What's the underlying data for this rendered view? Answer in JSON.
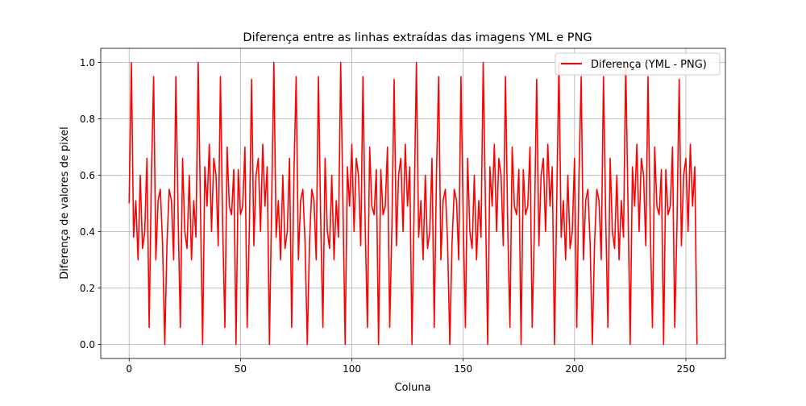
{
  "chart_data": {
    "type": "line",
    "title": "Diferença entre as linhas extraídas das imagens YML e PNG",
    "xlabel": "Coluna",
    "ylabel": "Diferença de valores de pixel",
    "xlim": [
      -12.75,
      267.75
    ],
    "ylim": [
      -0.05,
      1.05
    ],
    "x_ticks": [
      0,
      50,
      100,
      150,
      200,
      250
    ],
    "y_ticks": [
      0.0,
      0.2,
      0.4,
      0.6,
      0.8,
      1.0
    ],
    "x_tick_labels": [
      "0",
      "50",
      "100",
      "150",
      "200",
      "250"
    ],
    "y_tick_labels": [
      "0.0",
      "0.2",
      "0.4",
      "0.6",
      "0.8",
      "1.0"
    ],
    "grid": true,
    "legend_position": "top-right",
    "series": [
      {
        "name": "Diferença (YML - PNG)",
        "color": "#ff0000",
        "x": [
          0,
          1,
          2,
          3,
          4,
          5,
          6,
          7,
          8,
          9,
          10,
          11,
          12,
          13,
          14,
          15,
          16,
          17,
          18,
          19,
          20,
          21,
          22,
          23,
          24,
          25,
          26,
          27,
          28,
          29,
          30,
          31,
          32,
          33,
          34,
          35,
          36,
          37,
          38,
          39,
          40,
          41,
          42,
          43,
          44,
          45,
          46,
          47,
          48,
          49,
          50,
          51,
          52,
          53,
          54,
          55,
          56,
          57,
          58,
          59,
          60,
          61,
          62,
          63,
          64,
          65,
          66,
          67,
          68,
          69,
          70,
          71,
          72,
          73,
          74,
          75,
          76,
          77,
          78,
          79,
          80,
          81,
          82,
          83,
          84,
          85,
          86,
          87,
          88,
          89,
          90,
          91,
          92,
          93,
          94,
          95,
          96,
          97,
          98,
          99,
          100,
          101,
          102,
          103,
          104,
          105,
          106,
          107,
          108,
          109,
          110,
          111,
          112,
          113,
          114,
          115,
          116,
          117,
          118,
          119,
          120,
          121,
          122,
          123,
          124,
          125,
          126,
          127,
          128,
          129,
          130,
          131,
          132,
          133,
          134,
          135,
          136,
          137,
          138,
          139,
          140,
          141,
          142,
          143,
          144,
          145,
          146,
          147,
          148,
          149,
          150,
          151,
          152,
          153,
          154,
          155,
          156,
          157,
          158,
          159,
          160,
          161,
          162,
          163,
          164,
          165,
          166,
          167,
          168,
          169,
          170,
          171,
          172,
          173,
          174,
          175,
          176,
          177,
          178,
          179,
          180,
          181,
          182,
          183,
          184,
          185,
          186,
          187,
          188,
          189,
          190,
          191,
          192,
          193,
          194,
          195,
          196,
          197,
          198,
          199,
          200,
          201,
          202,
          203,
          204,
          205,
          206,
          207,
          208,
          209,
          210,
          211,
          212,
          213,
          214,
          215,
          216,
          217,
          218,
          219,
          220,
          221,
          222,
          223,
          224,
          225,
          226,
          227,
          228,
          229,
          230,
          231,
          232,
          233,
          234,
          235,
          236,
          237,
          238,
          239,
          240,
          241,
          242,
          243,
          244,
          245,
          246,
          247,
          248,
          249,
          250,
          251,
          252,
          253,
          254,
          255
        ],
        "y": [
          0.5,
          1.0,
          0.38,
          0.51,
          0.3,
          0.6,
          0.34,
          0.4,
          0.66,
          0.06,
          0.6,
          0.95,
          0.3,
          0.51,
          0.55,
          0.36,
          0.0,
          0.36,
          0.55,
          0.51,
          0.3,
          0.95,
          0.45,
          0.06,
          0.66,
          0.4,
          0.34,
          0.6,
          0.3,
          0.51,
          0.38,
          1.0,
          0.5,
          0.0,
          0.63,
          0.49,
          0.71,
          0.4,
          0.66,
          0.6,
          0.35,
          0.95,
          0.42,
          0.06,
          0.7,
          0.49,
          0.46,
          0.62,
          0.0,
          0.62,
          0.46,
          0.49,
          0.7,
          0.06,
          0.42,
          0.94,
          0.35,
          0.6,
          0.66,
          0.4,
          0.71,
          0.49,
          0.63,
          0.0,
          0.5,
          1.0,
          0.38,
          0.51,
          0.3,
          0.6,
          0.34,
          0.4,
          0.66,
          0.06,
          0.6,
          0.95,
          0.3,
          0.51,
          0.55,
          0.36,
          0.0,
          0.36,
          0.55,
          0.51,
          0.3,
          0.95,
          0.45,
          0.06,
          0.66,
          0.4,
          0.34,
          0.6,
          0.3,
          0.51,
          0.38,
          1.0,
          0.5,
          0.0,
          0.63,
          0.49,
          0.71,
          0.4,
          0.66,
          0.6,
          0.35,
          0.95,
          0.42,
          0.06,
          0.7,
          0.49,
          0.46,
          0.62,
          0.0,
          0.62,
          0.46,
          0.49,
          0.7,
          0.06,
          0.42,
          0.94,
          0.35,
          0.6,
          0.66,
          0.4,
          0.71,
          0.49,
          0.63,
          0.0,
          0.5,
          1.0,
          0.38,
          0.51,
          0.3,
          0.6,
          0.34,
          0.4,
          0.66,
          0.06,
          0.6,
          0.95,
          0.3,
          0.51,
          0.55,
          0.36,
          0.0,
          0.36,
          0.55,
          0.51,
          0.3,
          0.95,
          0.45,
          0.06,
          0.66,
          0.4,
          0.34,
          0.6,
          0.3,
          0.51,
          0.38,
          1.0,
          0.5,
          0.0,
          0.63,
          0.49,
          0.71,
          0.4,
          0.66,
          0.6,
          0.35,
          0.95,
          0.42,
          0.06,
          0.7,
          0.49,
          0.46,
          0.62,
          0.0,
          0.62,
          0.46,
          0.49,
          0.7,
          0.06,
          0.42,
          0.94,
          0.35,
          0.6,
          0.66,
          0.4,
          0.71,
          0.49,
          0.63,
          0.0,
          0.5,
          1.0,
          0.38,
          0.51,
          0.3,
          0.6,
          0.34,
          0.4,
          0.66,
          0.06,
          0.6,
          0.95,
          0.3,
          0.51,
          0.55,
          0.36,
          0.0,
          0.36,
          0.55,
          0.51,
          0.3,
          0.95,
          0.45,
          0.06,
          0.66,
          0.4,
          0.34,
          0.6,
          0.3,
          0.51,
          0.38,
          1.0,
          0.5,
          0.0,
          0.63,
          0.49,
          0.71,
          0.4,
          0.66,
          0.6,
          0.35,
          0.95,
          0.42,
          0.06,
          0.7,
          0.49,
          0.46,
          0.62,
          0.0,
          0.62,
          0.46,
          0.49,
          0.7,
          0.06,
          0.42,
          0.94,
          0.35,
          0.6,
          0.66,
          0.4,
          0.71,
          0.49,
          0.63,
          0.0
        ]
      }
    ]
  }
}
